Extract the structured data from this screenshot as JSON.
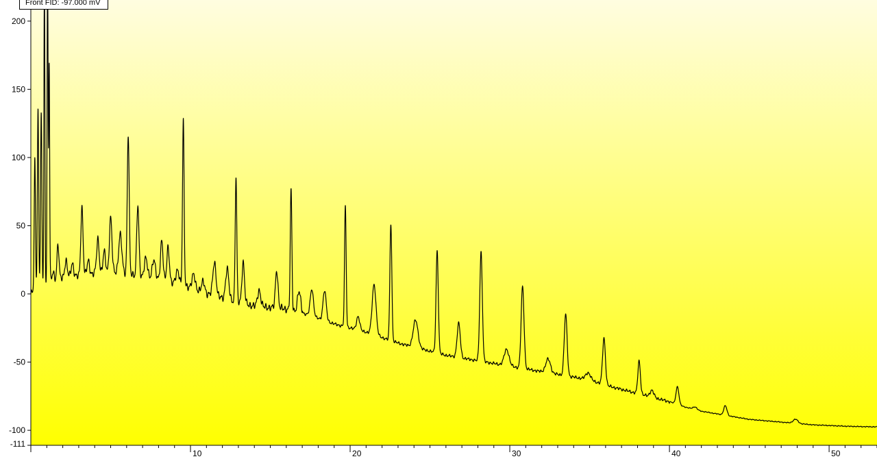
{
  "readout": {
    "text": "Front FID: -97.000 mV"
  },
  "colors": {
    "background_top": "#fffde0",
    "background_bottom": "#ffff00",
    "trace": "#000000",
    "axis": "#000000"
  },
  "chart_data": {
    "type": "line",
    "title": "",
    "xlabel": "",
    "ylabel": "",
    "xlim": [
      0,
      53
    ],
    "ylim": [
      -111,
      220
    ],
    "grid": false,
    "y_ticks": [
      -111,
      -100,
      -50,
      0,
      50,
      100,
      150,
      200
    ],
    "x_ticks": [
      10,
      20,
      30,
      40,
      50
    ],
    "x_tick_labels": [
      "10",
      "20",
      "30",
      "40",
      "50"
    ],
    "y_tick_labels": [
      "-111",
      "-100",
      "-50",
      "0",
      "50",
      "100",
      "150",
      "200"
    ],
    "series": [
      {
        "baseline": [
          [
            0,
            0
          ],
          [
            1,
            10
          ],
          [
            2,
            12
          ],
          [
            3,
            13
          ],
          [
            4,
            15
          ],
          [
            5,
            16
          ],
          [
            6,
            15
          ],
          [
            7,
            12
          ],
          [
            8,
            10
          ],
          [
            9,
            8
          ],
          [
            10,
            5
          ],
          [
            11,
            0
          ],
          [
            12,
            -3
          ],
          [
            13,
            -6
          ],
          [
            14,
            -9
          ],
          [
            15,
            -10
          ],
          [
            16,
            -11
          ],
          [
            17,
            -14
          ],
          [
            18,
            -18
          ],
          [
            19,
            -22
          ],
          [
            20,
            -25
          ],
          [
            21,
            -28
          ],
          [
            22,
            -32
          ],
          [
            23,
            -36
          ],
          [
            24,
            -39
          ],
          [
            25,
            -42
          ],
          [
            26,
            -45
          ],
          [
            27,
            -47
          ],
          [
            28,
            -49
          ],
          [
            29,
            -51
          ],
          [
            30,
            -53
          ],
          [
            31,
            -55
          ],
          [
            32,
            -57
          ],
          [
            33,
            -59
          ],
          [
            34,
            -61
          ],
          [
            35,
            -63
          ],
          [
            36,
            -67
          ],
          [
            37,
            -70
          ],
          [
            38,
            -73
          ],
          [
            39,
            -76
          ],
          [
            40,
            -79
          ],
          [
            41,
            -83
          ],
          [
            42,
            -86
          ],
          [
            43,
            -88
          ],
          [
            44,
            -90
          ],
          [
            45,
            -92
          ],
          [
            46,
            -93
          ],
          [
            47,
            -94
          ],
          [
            48,
            -95
          ],
          [
            49,
            -96
          ],
          [
            50,
            -96.5
          ],
          [
            51,
            -97
          ],
          [
            52,
            -97.3
          ],
          [
            53,
            -97.5
          ]
        ],
        "peaks": [
          [
            0.25,
            95,
            0.04
          ],
          [
            0.45,
            130,
            0.04
          ],
          [
            0.65,
            125,
            0.04
          ],
          [
            0.85,
            230,
            0.03
          ],
          [
            1.05,
            240,
            0.03
          ],
          [
            1.15,
            160,
            0.03
          ],
          [
            1.4,
            5,
            0.06
          ],
          [
            1.7,
            25,
            0.06
          ],
          [
            2.2,
            12,
            0.08
          ],
          [
            2.6,
            10,
            0.08
          ],
          [
            3.2,
            50,
            0.07
          ],
          [
            3.6,
            10,
            0.08
          ],
          [
            4.2,
            25,
            0.08
          ],
          [
            4.6,
            15,
            0.08
          ],
          [
            5.0,
            40,
            0.08
          ],
          [
            5.6,
            28,
            0.1
          ],
          [
            6.1,
            103,
            0.06
          ],
          [
            6.7,
            52,
            0.07
          ],
          [
            7.2,
            15,
            0.1
          ],
          [
            7.7,
            15,
            0.1
          ],
          [
            8.2,
            30,
            0.08
          ],
          [
            8.6,
            25,
            0.08
          ],
          [
            9.2,
            10,
            0.1
          ],
          [
            9.55,
            120,
            0.05
          ],
          [
            10.2,
            10,
            0.1
          ],
          [
            10.8,
            8,
            0.1
          ],
          [
            11.5,
            25,
            0.1
          ],
          [
            12.3,
            22,
            0.1
          ],
          [
            12.85,
            91,
            0.05
          ],
          [
            13.3,
            30,
            0.08
          ],
          [
            14.3,
            12,
            0.1
          ],
          [
            15.4,
            28,
            0.08
          ],
          [
            16.3,
            88,
            0.05
          ],
          [
            16.8,
            15,
            0.1
          ],
          [
            17.6,
            20,
            0.1
          ],
          [
            18.4,
            22,
            0.1
          ],
          [
            19.7,
            89,
            0.05
          ],
          [
            20.5,
            10,
            0.1
          ],
          [
            21.5,
            37,
            0.12
          ],
          [
            22.55,
            86,
            0.06
          ],
          [
            24.1,
            20,
            0.15
          ],
          [
            25.45,
            75,
            0.07
          ],
          [
            26.8,
            25,
            0.1
          ],
          [
            28.2,
            80,
            0.08
          ],
          [
            29.8,
            12,
            0.15
          ],
          [
            30.8,
            60,
            0.09
          ],
          [
            32.4,
            10,
            0.15
          ],
          [
            33.5,
            45,
            0.09
          ],
          [
            34.9,
            5,
            0.15
          ],
          [
            35.9,
            34,
            0.09
          ],
          [
            38.1,
            24,
            0.08
          ],
          [
            38.9,
            5,
            0.12
          ],
          [
            40.5,
            13,
            0.09
          ],
          [
            41.6,
            2,
            0.12
          ],
          [
            43.5,
            7,
            0.1
          ],
          [
            47.9,
            3,
            0.15
          ]
        ]
      }
    ]
  }
}
